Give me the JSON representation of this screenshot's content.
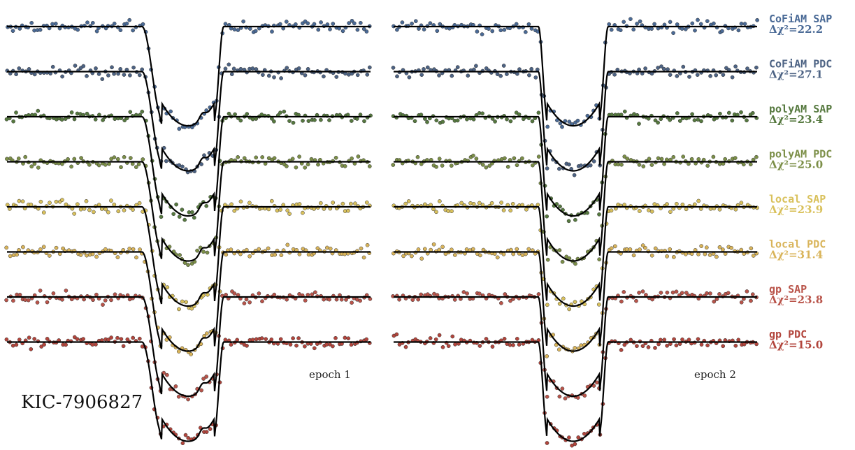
{
  "chart_data": {
    "type": "scatter",
    "title": "",
    "star_label": "KIC-7906827",
    "panels": [
      {
        "label": "epoch 1"
      },
      {
        "label": "epoch 2"
      }
    ],
    "transit_depth_relative": 1.0,
    "series": [
      {
        "name": "CoFiAM SAP",
        "chi_label": "Δχ²=22.2",
        "delta_chi2": 22.2,
        "color": "#4a6a96"
      },
      {
        "name": "CoFiAM PDC",
        "chi_label": "Δχ²=27.1",
        "delta_chi2": 27.1,
        "color": "#4d6384"
      },
      {
        "name": "polyAM SAP",
        "chi_label": "Δχ²=23.4",
        "delta_chi2": 23.4,
        "color": "#56793f"
      },
      {
        "name": "polyAM PDC",
        "chi_label": "Δχ²=25.0",
        "delta_chi2": 25.0,
        "color": "#7c8f48"
      },
      {
        "name": "local SAP",
        "chi_label": "Δχ²=23.9",
        "delta_chi2": 23.9,
        "color": "#d9c15c"
      },
      {
        "name": "local PDC",
        "chi_label": "Δχ²=31.4",
        "delta_chi2": 31.4,
        "color": "#d9b45a"
      },
      {
        "name": "gp SAP",
        "chi_label": "Δχ²=23.8",
        "delta_chi2": 23.8,
        "color": "#b9544a"
      },
      {
        "name": "gp PDC",
        "chi_label": "Δχ²=15.0",
        "delta_chi2": 15.0,
        "color": "#b2453c"
      }
    ]
  }
}
